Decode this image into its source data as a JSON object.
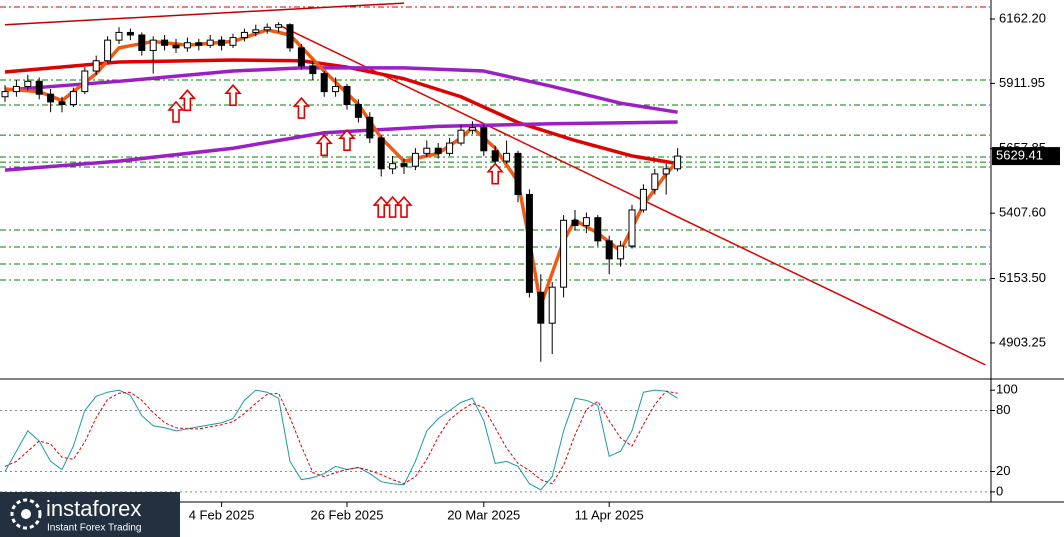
{
  "chart_data": {
    "type": "candlestick",
    "categories": [
      null,
      null,
      null,
      null,
      null,
      null,
      null,
      null,
      null,
      null,
      null,
      null,
      null,
      null,
      null,
      null,
      null,
      null,
      null,
      "4 Feb 2025",
      null,
      null,
      null,
      null,
      null,
      null,
      null,
      null,
      null,
      null,
      "26 Feb 2025",
      null,
      null,
      null,
      null,
      null,
      null,
      null,
      null,
      null,
      null,
      null,
      "20 Mar 2025",
      null,
      null,
      null,
      null,
      null,
      null,
      null,
      null,
      null,
      null,
      "11 Apr 2025",
      null,
      null,
      null,
      null,
      null,
      null
    ],
    "values": [
      [
        5860,
        5905,
        5840,
        5880
      ],
      [
        5880,
        5925,
        5860,
        5900
      ],
      [
        5900,
        5945,
        5885,
        5920
      ],
      [
        5920,
        5935,
        5850,
        5870
      ],
      [
        5870,
        5890,
        5800,
        5840
      ],
      [
        5840,
        5860,
        5800,
        5830
      ],
      [
        5830,
        5895,
        5820,
        5880
      ],
      [
        5880,
        5975,
        5870,
        5960
      ],
      [
        5960,
        6020,
        5945,
        6000
      ],
      [
        6000,
        6095,
        5990,
        6080
      ],
      [
        6080,
        6130,
        6065,
        6110
      ],
      [
        6110,
        6125,
        6080,
        6100
      ],
      [
        6100,
        6110,
        6020,
        6040
      ],
      [
        6040,
        6095,
        5950,
        6080
      ],
      [
        6080,
        6100,
        6040,
        6060
      ],
      [
        6060,
        6085,
        6030,
        6050
      ],
      [
        6050,
        6090,
        6035,
        6070
      ],
      [
        6070,
        6085,
        6040,
        6060
      ],
      [
        6060,
        6100,
        6050,
        6080
      ],
      [
        6080,
        6095,
        6040,
        6060
      ],
      [
        6060,
        6105,
        6050,
        6090
      ],
      [
        6090,
        6125,
        6075,
        6110
      ],
      [
        6110,
        6140,
        6095,
        6120
      ],
      [
        6120,
        6145,
        6105,
        6130
      ],
      [
        6130,
        6150,
        6110,
        6140
      ],
      [
        6140,
        6145,
        6035,
        6050
      ],
      [
        6050,
        6065,
        5965,
        5980
      ],
      [
        5980,
        6000,
        5925,
        5950
      ],
      [
        5950,
        5960,
        5860,
        5880
      ],
      [
        5880,
        5935,
        5860,
        5900
      ],
      [
        5900,
        5910,
        5810,
        5830
      ],
      [
        5830,
        5850,
        5760,
        5780
      ],
      [
        5780,
        5800,
        5680,
        5700
      ],
      [
        5700,
        5710,
        5550,
        5580
      ],
      [
        5580,
        5630,
        5560,
        5600
      ],
      [
        5600,
        5620,
        5560,
        5590
      ],
      [
        5590,
        5660,
        5575,
        5640
      ],
      [
        5640,
        5690,
        5625,
        5660
      ],
      [
        5660,
        5680,
        5620,
        5640
      ],
      [
        5640,
        5700,
        5630,
        5680
      ],
      [
        5680,
        5750,
        5670,
        5730
      ],
      [
        5730,
        5765,
        5715,
        5740
      ],
      [
        5740,
        5750,
        5630,
        5650
      ],
      [
        5650,
        5670,
        5590,
        5610
      ],
      [
        5610,
        5690,
        5600,
        5640
      ],
      [
        5640,
        5650,
        5450,
        5480
      ],
      [
        5480,
        5500,
        5080,
        5100
      ],
      [
        5100,
        5170,
        4830,
        4980
      ],
      [
        4980,
        5140,
        4860,
        5120
      ],
      [
        5120,
        5400,
        5080,
        5380
      ],
      [
        5380,
        5420,
        5340,
        5360
      ],
      [
        5360,
        5410,
        5330,
        5390
      ],
      [
        5390,
        5400,
        5280,
        5300
      ],
      [
        5300,
        5320,
        5170,
        5230
      ],
      [
        5230,
        5300,
        5200,
        5280
      ],
      [
        5280,
        5440,
        5270,
        5420
      ],
      [
        5420,
        5520,
        5410,
        5500
      ],
      [
        5500,
        5580,
        5480,
        5560
      ],
      [
        5560,
        5600,
        5480,
        5580
      ],
      [
        5580,
        5660,
        5570,
        5629.41
      ]
    ],
    "up_color": "#ffffff",
    "down_color": "#000000",
    "ylim": [
      4767,
      6236
    ],
    "yticks": [
      {
        "value": 6162.2,
        "label": "6162.20"
      },
      5911.95,
      5657.85,
      {
        "value": 5407.6,
        "label": "5407.60"
      },
      {
        "value": 5153.5,
        "label": "5153.50"
      },
      4903.25
    ],
    "last_price": {
      "value": 5629.41,
      "label": "5629.41"
    },
    "lines": [
      {
        "color": "#e00000",
        "x": [
          0,
          10,
          20,
          26,
          30,
          35,
          40,
          45,
          50,
          55,
          59
        ],
        "values": [
          5956,
          5995,
          6003,
          6000,
          5975,
          5930,
          5860,
          5760,
          5690,
          5630,
          5600
        ]
      },
      {
        "color": "#9b1fc4",
        "x": [
          0,
          10,
          20,
          26,
          35,
          42,
          48,
          54,
          59
        ],
        "values": [
          5886,
          5920,
          5960,
          5972,
          5972,
          5960,
          5900,
          5835,
          5800
        ]
      },
      {
        "color": "#9b1fc4",
        "x": [
          0,
          10,
          20,
          28,
          38,
          48,
          59
        ],
        "values": [
          5575,
          5610,
          5660,
          5720,
          5745,
          5755,
          5762
        ]
      },
      {
        "color": "#f05a14",
        "x": [
          0,
          3,
          5,
          8,
          10,
          13,
          16,
          20,
          23,
          25,
          28,
          31,
          33,
          35,
          38,
          40,
          41,
          43,
          45,
          46,
          47,
          49,
          50,
          52,
          54,
          56,
          58,
          59
        ],
        "values": [
          5890,
          5880,
          5845,
          5950,
          6050,
          6075,
          6060,
          6075,
          6120,
          6100,
          5960,
          5830,
          5700,
          5610,
          5640,
          5700,
          5740,
          5660,
          5530,
          5300,
          5050,
          5300,
          5380,
          5330,
          5260,
          5440,
          5560,
          5610
        ]
      }
    ],
    "trendlines": [
      {
        "color": "#e00000",
        "x": [
          24,
          86
        ],
        "values": [
          6139,
          4818
        ]
      },
      {
        "color": "#c00000",
        "x": [
          0,
          35
        ],
        "values": [
          6140,
          6224
        ]
      }
    ],
    "levels": {
      "color": "#008000",
      "values": [
        5925,
        5828,
        5711,
        5626,
        5606,
        5587,
        5342,
        5276,
        5210,
        5148
      ]
    },
    "top_level": {
      "color": "#e00000",
      "value": 6209
    },
    "arrows": {
      "color": "#e00000",
      "x": [
        15,
        16,
        20,
        26,
        28,
        30,
        33,
        34,
        35,
        43
      ],
      "values": [
        5840,
        5885,
        5905,
        5855,
        5710,
        5730,
        5470,
        5470,
        5470,
        5600
      ]
    },
    "stochastic": {
      "ylim": [
        -8,
        110
      ],
      "yticks": [
        0,
        20,
        80,
        100
      ],
      "series": [
        {
          "color": "#1a9aa8",
          "values": [
            20,
            40,
            60,
            50,
            30,
            22,
            45,
            80,
            94,
            98,
            100,
            95,
            75,
            65,
            63,
            60,
            62,
            64,
            66,
            68,
            72,
            90,
            100,
            98,
            92,
            30,
            12,
            14,
            18,
            25,
            22,
            24,
            18,
            10,
            8,
            7,
            30,
            60,
            72,
            80,
            88,
            92,
            70,
            28,
            30,
            25,
            8,
            2,
            15,
            60,
            92,
            90,
            85,
            35,
            40,
            60,
            98,
            100,
            99,
            92
          ]
        },
        {
          "color": "#e00000",
          "values": [
            25,
            30,
            40,
            50,
            47,
            34,
            32,
            49,
            73,
            91,
            97,
            98,
            90,
            78,
            68,
            63,
            62,
            62,
            64,
            66,
            69,
            77,
            87,
            96,
            97,
            73,
            45,
            19,
            15,
            19,
            22,
            24,
            21,
            17,
            12,
            8,
            15,
            32,
            54,
            71,
            80,
            87,
            83,
            63,
            43,
            28,
            21,
            12,
            8,
            26,
            56,
            81,
            89,
            70,
            53,
            45,
            66,
            86,
            99,
            97
          ]
        }
      ]
    },
    "logo": {
      "name": "instaforex",
      "tagline": "Instant Forex Trading"
    }
  }
}
